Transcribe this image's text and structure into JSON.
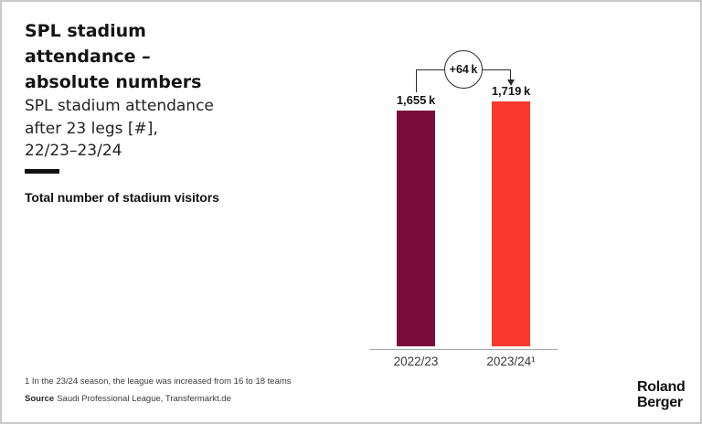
{
  "header": {
    "title": "SPL stadium attendance – absolute numbers",
    "subtitle": "SPL stadium attendance after 23 legs [#], 22/23⁠–⁠23/24"
  },
  "chart_data": {
    "type": "bar",
    "title": "Total number of stadium visitors",
    "categories": [
      "2022/23",
      "2023/24¹"
    ],
    "values": [
      1655,
      1719
    ],
    "value_labels": [
      "1,655 k",
      "1,719 k"
    ],
    "delta_label": "+64 k",
    "unit": "k (thousand stadium visitors)",
    "colors": [
      "#7a0c3d",
      "#fb382d"
    ],
    "ylim": [
      0,
      1719
    ],
    "grid": false,
    "legend": false
  },
  "footer": {
    "footnote": "1 In the 23/24 season, the league was increased from 16 to 18 teams",
    "source_label": "Source",
    "source_text": "Saudi Professional League, Transfermarkt.de",
    "logo_line1": "Roland",
    "logo_line2": "Berger"
  }
}
